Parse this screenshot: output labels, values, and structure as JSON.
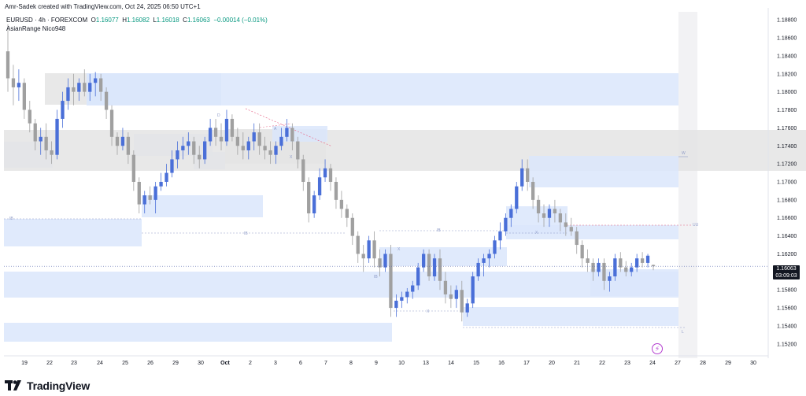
{
  "header": {
    "title": "Amr-Sadek created with TradingView.com, Oct 24, 2025 06:50 UTC+1"
  },
  "legend": {
    "symbol": "EURUSD · 4h · FOREXCOM",
    "o_label": "O",
    "o_value": "1.16077",
    "h_label": "H",
    "h_value": "1.16082",
    "l_label": "L",
    "l_value": "1.16018",
    "c_label": "C",
    "c_value": "1.16063",
    "change": "−0.00014 (−0.01%)",
    "indicator": "AsianRange Nico948"
  },
  "price_badge": {
    "price": "1.16063",
    "timer": "03:09:03"
  },
  "footer": {
    "brand": "TradingView"
  },
  "colors": {
    "up": "#4a6fd8",
    "down": "#a0a0a0",
    "zone_blue": "#dbe6fb",
    "zone_grey": "#e4e4e4",
    "background": "#ffffff"
  },
  "chart_data": {
    "type": "candlestick",
    "symbol": "EURUSD",
    "timeframe": "4h",
    "y_range": [
      1.1505,
      1.1895
    ],
    "y_ticks": [
      "1.18800",
      "1.18600",
      "1.18400",
      "1.18200",
      "1.18000",
      "1.17800",
      "1.17600",
      "1.17400",
      "1.17200",
      "1.17000",
      "1.16800",
      "1.16600",
      "1.16400",
      "1.16200",
      "1.16000",
      "1.15800",
      "1.15600",
      "1.15400",
      "1.15200"
    ],
    "x_ticks": [
      "19",
      "22",
      "23",
      "24",
      "25",
      "26",
      "29",
      "30",
      "Oct",
      "2",
      "3",
      "6",
      "7",
      "8",
      "9",
      "10",
      "13",
      "14",
      "15",
      "16",
      "17",
      "20",
      "21",
      "22",
      "23",
      "24",
      "27",
      "28",
      "29",
      "30"
    ],
    "zone_labels": [
      "D",
      "IB",
      "IB",
      "IB",
      "IB",
      "X",
      "X",
      "X",
      "X",
      "W",
      "UU",
      "L",
      "A"
    ],
    "last_price": 1.16063,
    "candles": [
      [
        1.1845,
        1.1875,
        1.18,
        1.1815
      ],
      [
        1.1815,
        1.183,
        1.1785,
        1.1805
      ],
      [
        1.1805,
        1.1825,
        1.179,
        1.181
      ],
      [
        1.181,
        1.1815,
        1.177,
        1.178
      ],
      [
        1.178,
        1.179,
        1.1755,
        1.1765
      ],
      [
        1.1765,
        1.177,
        1.1735,
        1.1745
      ],
      [
        1.1745,
        1.176,
        1.173,
        1.175
      ],
      [
        1.175,
        1.1765,
        1.1725,
        1.1735
      ],
      [
        1.1735,
        1.1745,
        1.172,
        1.173
      ],
      [
        1.173,
        1.178,
        1.1725,
        1.177
      ],
      [
        1.177,
        1.18,
        1.176,
        1.179
      ],
      [
        1.179,
        1.1815,
        1.178,
        1.1805
      ],
      [
        1.1805,
        1.182,
        1.1785,
        1.18
      ],
      [
        1.18,
        1.1815,
        1.179,
        1.181
      ],
      [
        1.181,
        1.1825,
        1.1795,
        1.18
      ],
      [
        1.18,
        1.182,
        1.179,
        1.181
      ],
      [
        1.181,
        1.1822,
        1.1795,
        1.1815
      ],
      [
        1.1815,
        1.182,
        1.179,
        1.18
      ],
      [
        1.18,
        1.1805,
        1.177,
        1.178
      ],
      [
        1.178,
        1.1785,
        1.174,
        1.175
      ],
      [
        1.175,
        1.1755,
        1.173,
        1.174
      ],
      [
        1.174,
        1.176,
        1.1735,
        1.175
      ],
      [
        1.175,
        1.1755,
        1.172,
        1.173
      ],
      [
        1.173,
        1.1735,
        1.169,
        1.17
      ],
      [
        1.17,
        1.1705,
        1.1665,
        1.1675
      ],
      [
        1.1675,
        1.169,
        1.1665,
        1.1685
      ],
      [
        1.1685,
        1.1695,
        1.1675,
        1.168
      ],
      [
        1.168,
        1.17,
        1.1665,
        1.1695
      ],
      [
        1.1695,
        1.171,
        1.169,
        1.17
      ],
      [
        1.17,
        1.172,
        1.1695,
        1.171
      ],
      [
        1.171,
        1.1735,
        1.1705,
        1.1725
      ],
      [
        1.1725,
        1.1745,
        1.1715,
        1.1735
      ],
      [
        1.1735,
        1.175,
        1.1725,
        1.174
      ],
      [
        1.174,
        1.1755,
        1.173,
        1.1745
      ],
      [
        1.1745,
        1.175,
        1.172,
        1.173
      ],
      [
        1.173,
        1.174,
        1.1715,
        1.1725
      ],
      [
        1.1725,
        1.175,
        1.172,
        1.1745
      ],
      [
        1.1745,
        1.177,
        1.174,
        1.176
      ],
      [
        1.176,
        1.177,
        1.174,
        1.175
      ],
      [
        1.175,
        1.1765,
        1.1735,
        1.1745
      ],
      [
        1.1745,
        1.178,
        1.174,
        1.177
      ],
      [
        1.177,
        1.1775,
        1.1745,
        1.175
      ],
      [
        1.175,
        1.176,
        1.173,
        1.174
      ],
      [
        1.174,
        1.1755,
        1.1725,
        1.1735
      ],
      [
        1.1735,
        1.175,
        1.1725,
        1.1745
      ],
      [
        1.1745,
        1.1765,
        1.1735,
        1.1755
      ],
      [
        1.1755,
        1.1765,
        1.173,
        1.174
      ],
      [
        1.174,
        1.175,
        1.1725,
        1.1735
      ],
      [
        1.1735,
        1.1745,
        1.172,
        1.173
      ],
      [
        1.173,
        1.1745,
        1.172,
        1.174
      ],
      [
        1.174,
        1.176,
        1.1735,
        1.175
      ],
      [
        1.175,
        1.177,
        1.1745,
        1.176
      ],
      [
        1.176,
        1.1765,
        1.1735,
        1.1745
      ],
      [
        1.1745,
        1.175,
        1.1715,
        1.1725
      ],
      [
        1.1725,
        1.173,
        1.169,
        1.17
      ],
      [
        1.17,
        1.1705,
        1.1655,
        1.1665
      ],
      [
        1.1665,
        1.169,
        1.166,
        1.1685
      ],
      [
        1.1685,
        1.1715,
        1.168,
        1.1705
      ],
      [
        1.1705,
        1.1725,
        1.17,
        1.1715
      ],
      [
        1.1715,
        1.172,
        1.169,
        1.17
      ],
      [
        1.17,
        1.1705,
        1.167,
        1.168
      ],
      [
        1.168,
        1.169,
        1.166,
        1.167
      ],
      [
        1.167,
        1.1675,
        1.165,
        1.166
      ],
      [
        1.166,
        1.1665,
        1.163,
        1.164
      ],
      [
        1.164,
        1.1645,
        1.161,
        1.162
      ],
      [
        1.162,
        1.163,
        1.16,
        1.1615
      ],
      [
        1.1615,
        1.164,
        1.161,
        1.1635
      ],
      [
        1.1635,
        1.1645,
        1.1605,
        1.1615
      ],
      [
        1.1615,
        1.1625,
        1.1595,
        1.1605
      ],
      [
        1.1605,
        1.1625,
        1.16,
        1.162
      ],
      [
        1.162,
        1.163,
        1.155,
        1.156
      ],
      [
        1.156,
        1.1575,
        1.155,
        1.1568
      ],
      [
        1.1568,
        1.1578,
        1.156,
        1.1572
      ],
      [
        1.1572,
        1.1582,
        1.1565,
        1.1578
      ],
      [
        1.1578,
        1.159,
        1.157,
        1.1585
      ],
      [
        1.1585,
        1.161,
        1.158,
        1.1605
      ],
      [
        1.1605,
        1.1625,
        1.16,
        1.162
      ],
      [
        1.162,
        1.1625,
        1.159,
        1.1595
      ],
      [
        1.1595,
        1.162,
        1.159,
        1.1615
      ],
      [
        1.1615,
        1.1625,
        1.158,
        1.159
      ],
      [
        1.159,
        1.16,
        1.1565,
        1.1575
      ],
      [
        1.1575,
        1.1585,
        1.156,
        1.157
      ],
      [
        1.157,
        1.1585,
        1.156,
        1.158
      ],
      [
        1.158,
        1.159,
        1.1545,
        1.1555
      ],
      [
        1.1555,
        1.157,
        1.155,
        1.1565
      ],
      [
        1.1565,
        1.16,
        1.156,
        1.1595
      ],
      [
        1.1595,
        1.1615,
        1.159,
        1.161
      ],
      [
        1.161,
        1.162,
        1.1595,
        1.1615
      ],
      [
        1.1615,
        1.1625,
        1.1605,
        1.162
      ],
      [
        1.162,
        1.164,
        1.1615,
        1.1635
      ],
      [
        1.1635,
        1.1655,
        1.1625,
        1.1645
      ],
      [
        1.1645,
        1.1665,
        1.164,
        1.166
      ],
      [
        1.166,
        1.1675,
        1.165,
        1.167
      ],
      [
        1.167,
        1.17,
        1.1665,
        1.1695
      ],
      [
        1.1695,
        1.1725,
        1.169,
        1.1715
      ],
      [
        1.1715,
        1.1725,
        1.169,
        1.17
      ],
      [
        1.17,
        1.1705,
        1.167,
        1.168
      ],
      [
        1.168,
        1.1685,
        1.1655,
        1.1665
      ],
      [
        1.1665,
        1.1675,
        1.165,
        1.166
      ],
      [
        1.166,
        1.1675,
        1.165,
        1.167
      ],
      [
        1.167,
        1.168,
        1.1655,
        1.1665
      ],
      [
        1.1665,
        1.167,
        1.1645,
        1.1655
      ],
      [
        1.1655,
        1.1665,
        1.164,
        1.165
      ],
      [
        1.165,
        1.166,
        1.164,
        1.1645
      ],
      [
        1.1645,
        1.165,
        1.162,
        1.163
      ],
      [
        1.163,
        1.1635,
        1.1605,
        1.1615
      ],
      [
        1.1615,
        1.1625,
        1.16,
        1.161
      ],
      [
        1.161,
        1.1615,
        1.159,
        1.16
      ],
      [
        1.16,
        1.1615,
        1.1595,
        1.161
      ],
      [
        1.161,
        1.1615,
        1.158,
        1.159
      ],
      [
        1.159,
        1.16,
        1.1578,
        1.1595
      ],
      [
        1.1595,
        1.162,
        1.159,
        1.1615
      ],
      [
        1.1615,
        1.1622,
        1.16,
        1.1605
      ],
      [
        1.1605,
        1.1612,
        1.1595,
        1.16
      ],
      [
        1.16,
        1.161,
        1.1595,
        1.1605
      ],
      [
        1.1605,
        1.162,
        1.16,
        1.1615
      ],
      [
        1.1615,
        1.1622,
        1.1605,
        1.161
      ],
      [
        1.161,
        1.162,
        1.1605,
        1.1618
      ],
      [
        1.16077,
        1.16082,
        1.16018,
        1.16063
      ]
    ]
  }
}
